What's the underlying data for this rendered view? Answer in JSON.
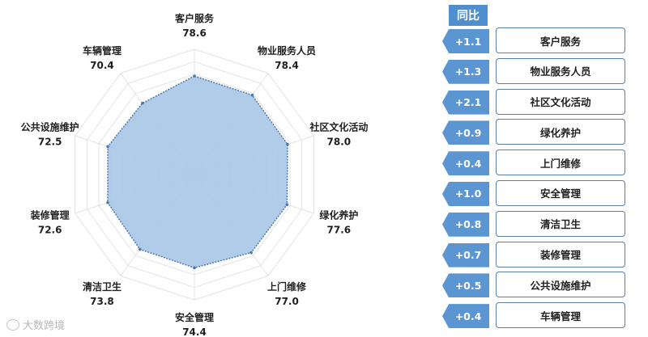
{
  "chart_data": {
    "type": "radar",
    "rmax": 100,
    "rings": 10,
    "categories": [
      "客户服务",
      "物业服务人员",
      "社区文化活动",
      "绿化养护",
      "上门维修",
      "安全管理",
      "清洁卫生",
      "装修管理",
      "公共设施维护",
      "车辆管理"
    ],
    "values": [
      78.6,
      78.4,
      78.0,
      77.6,
      77.0,
      74.4,
      73.8,
      72.6,
      72.5,
      70.4
    ],
    "value_labels": [
      "78.6",
      "78.4",
      "78.0",
      "77.6",
      "77.0",
      "74.4",
      "73.8",
      "72.6",
      "72.5",
      "70.4"
    ],
    "fill_color": "#a9c6e6",
    "line_color": "#4a79b0",
    "grid_color": "#e3e3e3"
  },
  "yoy": {
    "header": "同比",
    "rows": [
      {
        "change": "+1.1",
        "label": "客户服务"
      },
      {
        "change": "+1.3",
        "label": "物业服务人员"
      },
      {
        "change": "+2.1",
        "label": "社区文化活动"
      },
      {
        "change": "+0.9",
        "label": "绿化养护"
      },
      {
        "change": "+0.4",
        "label": "上门维修"
      },
      {
        "change": "+1.0",
        "label": "安全管理"
      },
      {
        "change": "+0.8",
        "label": "清洁卫生"
      },
      {
        "change": "+0.7",
        "label": "装修管理"
      },
      {
        "change": "+0.5",
        "label": "公共设施维护"
      },
      {
        "change": "+0.4",
        "label": "车辆管理"
      }
    ]
  },
  "watermark": {
    "text": "大数跨境",
    "icon": "logo-icon"
  }
}
